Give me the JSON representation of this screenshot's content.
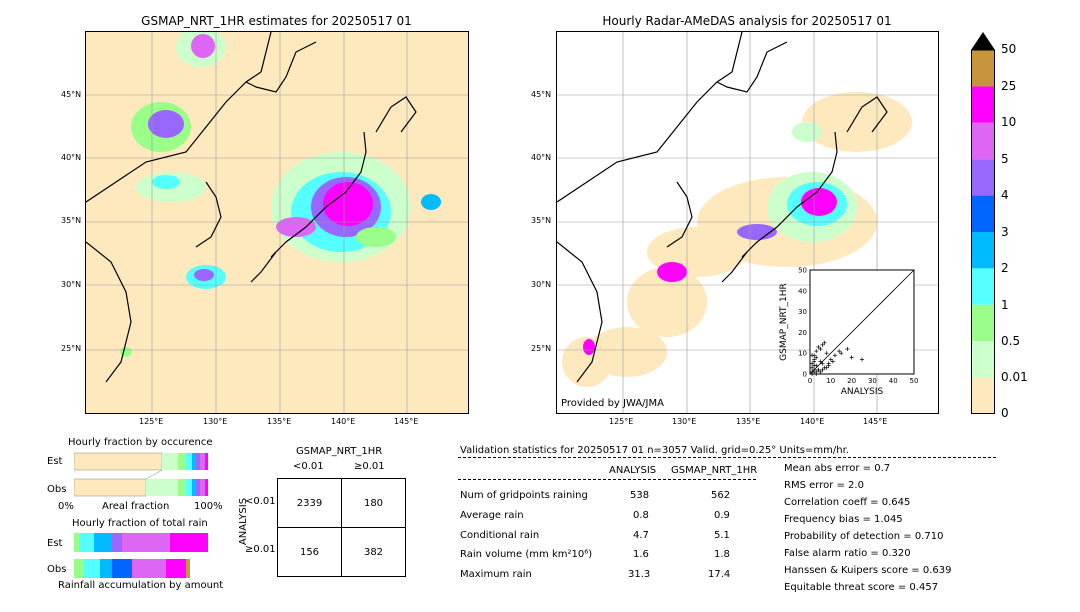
{
  "left_map": {
    "title": "GSMAP_NRT_1HR estimates for 20250517 01",
    "lat_labels": [
      "45°N",
      "40°N",
      "35°N",
      "30°N",
      "25°N"
    ],
    "lon_labels": [
      "125°E",
      "130°E",
      "135°E",
      "140°E",
      "145°E"
    ]
  },
  "right_map": {
    "title": "Hourly Radar-AMeDAS analysis for 20250517 01",
    "lat_labels": [
      "45°N",
      "40°N",
      "35°N",
      "30°N",
      "25°N"
    ],
    "lon_labels": [
      "125°E",
      "130°E",
      "135°E",
      "140°E",
      "145°E"
    ],
    "credit": "Provided by JWA/JMA"
  },
  "colorbar": {
    "labels": [
      "50",
      "25",
      "10",
      "5",
      "4",
      "3",
      "2",
      "1",
      "0.5",
      "0.01",
      "0"
    ],
    "colors": [
      "#c8943c",
      "#ff00ff",
      "#dd66f5",
      "#9966ff",
      "#0066ff",
      "#00bbff",
      "#55ffff",
      "#99ff88",
      "#ccffcc",
      "#fde9bd"
    ]
  },
  "chart_data": {
    "type": "scatter",
    "xlabel": "ANALYSIS",
    "ylabel": "GSMAP_NRT_1HR",
    "xlim": [
      0,
      50
    ],
    "ylim": [
      0,
      50
    ],
    "ticks": [
      "0",
      "10",
      "20",
      "30",
      "40",
      "50"
    ],
    "x": [
      1,
      2,
      3,
      1,
      2,
      4,
      5,
      6,
      3,
      2,
      7,
      8,
      1,
      2,
      3,
      5,
      9,
      10,
      12,
      4,
      6,
      15,
      18,
      20,
      25,
      2,
      3,
      1,
      4,
      5,
      8,
      11,
      14,
      3,
      2,
      1,
      6,
      7,
      9
    ],
    "y": [
      1,
      2,
      1,
      3,
      4,
      2,
      6,
      5,
      8,
      9,
      3,
      10,
      5,
      6,
      11,
      12,
      4,
      7,
      9,
      13,
      14,
      10,
      12,
      8,
      7,
      1,
      0,
      0,
      2,
      1,
      3,
      6,
      11,
      4,
      7,
      9,
      2,
      15,
      5
    ]
  },
  "occurrence": {
    "title": "Hourly fraction by occurence",
    "rows": [
      "Est",
      "Obs"
    ],
    "axis": [
      "0%",
      "Areal fraction",
      "100%"
    ]
  },
  "total_rain": {
    "title": "Hourly fraction of total rain",
    "rows": [
      "Est",
      "Obs"
    ],
    "footer": "Rainfall accumulation by amount"
  },
  "contingency": {
    "title": "GSMAP_NRT_1HR",
    "col_labels": [
      "<0.01",
      "≥0.01"
    ],
    "row_axis": "ANALYSIS",
    "row_labels": [
      "<0.01",
      "≥0.01"
    ],
    "cells": [
      [
        "2339",
        "180"
      ],
      [
        "156",
        "382"
      ]
    ]
  },
  "validation": {
    "header": "Validation statistics for 20250517 01  n=3057 Valid. grid=0.25°  Units=mm/hr.",
    "col1": "ANALYSIS",
    "col2": "GSMAP_NRT_1HR",
    "rows": [
      {
        "label": "Num of gridpoints raining",
        "a": "538",
        "g": "562"
      },
      {
        "label": "Average rain",
        "a": "0.8",
        "g": "0.9"
      },
      {
        "label": "Conditional rain",
        "a": "4.7",
        "g": "5.1"
      },
      {
        "label": "Rain volume (mm km²10⁶)",
        "a": "1.6",
        "g": "1.8"
      },
      {
        "label": "Maximum rain",
        "a": "31.3",
        "g": "17.4"
      }
    ],
    "scores": [
      "Mean abs error =    0.7",
      "RMS error =    2.0",
      "Correlation coeff =  0.645",
      "Frequency bias =  1.045",
      "Probability of detection =  0.710",
      "False alarm ratio =  0.320",
      "Hanssen & Kuipers score =  0.639",
      "Equitable threat score =  0.457"
    ]
  }
}
